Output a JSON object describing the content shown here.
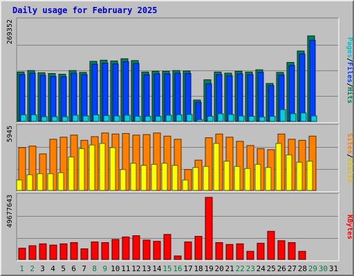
{
  "title": "Daily usage for February 2025",
  "legend_top": [
    {
      "label": "Pages",
      "color": "#00c0d0"
    },
    {
      "label": "Files",
      "color": "#0040ff"
    },
    {
      "label": "Hits",
      "color": "#008060"
    }
  ],
  "legend_mid": [
    {
      "label": "Sites",
      "color": "#ff8000"
    },
    {
      "label": "Visits",
      "color": "#e0c000"
    }
  ],
  "legend_bot": [
    {
      "label": "KBytes",
      "color": "#ff0000"
    }
  ],
  "separator": "/",
  "chart_data": [
    {
      "type": "bar",
      "panel": "hits-files-pages",
      "categories": [
        "1",
        "2",
        "3",
        "4",
        "5",
        "6",
        "7",
        "8",
        "9",
        "10",
        "11",
        "12",
        "13",
        "14",
        "15",
        "16",
        "17",
        "18",
        "19",
        "20",
        "21",
        "22",
        "23",
        "24",
        "25",
        "26",
        "27",
        "28",
        "29",
        "30",
        "31"
      ],
      "y_max_label": "269352",
      "ylim": [
        0,
        269352
      ],
      "series": [
        {
          "name": "Hits",
          "color": "#00805a",
          "values": [
            134000,
            138000,
            132000,
            130000,
            128000,
            138000,
            133000,
            163000,
            166000,
            164000,
            170000,
            165000,
            134000,
            136000,
            136000,
            138000,
            137000,
            58000,
            113000,
            134000,
            131000,
            136000,
            134000,
            140000,
            103000,
            133000,
            160000,
            191000,
            232000,
            0,
            0
          ]
        },
        {
          "name": "Files",
          "color": "#0040ff",
          "values": [
            127000,
            131000,
            125000,
            122000,
            121000,
            131000,
            127000,
            155000,
            158000,
            156000,
            162000,
            157000,
            127000,
            129000,
            129000,
            131000,
            130000,
            52000,
            102000,
            127000,
            124000,
            129000,
            127000,
            133000,
            97000,
            126000,
            152000,
            183000,
            220000,
            0,
            0
          ]
        },
        {
          "name": "Pages",
          "color": "#00d0e0",
          "values": [
            18000,
            18000,
            13000,
            13000,
            13000,
            17000,
            15000,
            18000,
            16000,
            15000,
            17000,
            14000,
            14000,
            14000,
            17000,
            18000,
            19000,
            5000,
            14000,
            21000,
            19000,
            15000,
            14000,
            12000,
            14000,
            32000,
            21000,
            23000,
            15000,
            0,
            0
          ]
        }
      ]
    },
    {
      "type": "bar",
      "panel": "sites-visits",
      "categories": [
        "1",
        "2",
        "3",
        "4",
        "5",
        "6",
        "7",
        "8",
        "9",
        "10",
        "11",
        "12",
        "13",
        "14",
        "15",
        "16",
        "17",
        "18",
        "19",
        "20",
        "21",
        "22",
        "23",
        "24",
        "25",
        "26",
        "27",
        "28",
        "29",
        "30",
        "31"
      ],
      "y_max_label": "5945",
      "ylim": [
        0,
        5945
      ],
      "series": [
        {
          "name": "Sites",
          "color": "#ff8000",
          "values": [
            4100,
            4250,
            3500,
            4900,
            5100,
            5300,
            4800,
            5150,
            5500,
            5400,
            5450,
            5300,
            5350,
            5500,
            5200,
            4900,
            2000,
            2900,
            5050,
            5400,
            5100,
            4700,
            4300,
            4000,
            3900,
            5400,
            4900,
            4800,
            5200,
            0,
            0
          ]
        },
        {
          "name": "Visits",
          "color": "#ffff00",
          "values": [
            1000,
            1500,
            1600,
            1600,
            1700,
            3200,
            4000,
            4350,
            4500,
            4100,
            2000,
            2600,
            2400,
            2500,
            2600,
            2400,
            1000,
            2200,
            2300,
            4500,
            2800,
            2300,
            2100,
            2500,
            2200,
            4500,
            3400,
            2700,
            2800,
            0,
            0
          ]
        }
      ]
    },
    {
      "type": "bar",
      "panel": "kbytes",
      "categories": [
        "1",
        "2",
        "3",
        "4",
        "5",
        "6",
        "7",
        "8",
        "9",
        "10",
        "11",
        "12",
        "13",
        "14",
        "15",
        "16",
        "17",
        "18",
        "19",
        "20",
        "21",
        "22",
        "23",
        "24",
        "25",
        "26",
        "27",
        "28",
        "29",
        "30",
        "31"
      ],
      "y_max_label": "49677643",
      "ylim": [
        0,
        49677643
      ],
      "series": [
        {
          "name": "KBytes",
          "color": "#ff0000",
          "values": [
            9000000,
            11000000,
            12500000,
            11500000,
            12500000,
            13500000,
            8500000,
            14000000,
            13500000,
            16000000,
            18000000,
            19000000,
            15500000,
            14500000,
            20000000,
            2800000,
            14000000,
            18500000,
            49677643,
            13500000,
            12000000,
            12500000,
            6500000,
            13000000,
            22500000,
            15000000,
            13500000,
            6500000,
            0,
            0,
            0
          ]
        }
      ]
    }
  ],
  "x_labels": [
    {
      "text": "1",
      "color": "#008040"
    },
    {
      "text": "2",
      "color": "#008040"
    },
    {
      "text": "3",
      "color": "#000000"
    },
    {
      "text": "4",
      "color": "#000000"
    },
    {
      "text": "5",
      "color": "#000000"
    },
    {
      "text": "6",
      "color": "#000000"
    },
    {
      "text": "7",
      "color": "#000000"
    },
    {
      "text": "8",
      "color": "#008040"
    },
    {
      "text": "9",
      "color": "#008040"
    },
    {
      "text": "10",
      "color": "#000000"
    },
    {
      "text": "11",
      "color": "#000000"
    },
    {
      "text": "12",
      "color": "#000000"
    },
    {
      "text": "13",
      "color": "#000000"
    },
    {
      "text": "14",
      "color": "#000000"
    },
    {
      "text": "15",
      "color": "#008040"
    },
    {
      "text": "16",
      "color": "#008040"
    },
    {
      "text": "17",
      "color": "#000000"
    },
    {
      "text": "18",
      "color": "#000000"
    },
    {
      "text": "19",
      "color": "#000000"
    },
    {
      "text": "20",
      "color": "#000000"
    },
    {
      "text": "21",
      "color": "#000000"
    },
    {
      "text": "22",
      "color": "#008040"
    },
    {
      "text": "23",
      "color": "#008040"
    },
    {
      "text": "24",
      "color": "#000000"
    },
    {
      "text": "25",
      "color": "#000000"
    },
    {
      "text": "26",
      "color": "#000000"
    },
    {
      "text": "27",
      "color": "#000000"
    },
    {
      "text": "28",
      "color": "#000000"
    },
    {
      "text": "29",
      "color": "#008040"
    },
    {
      "text": "30",
      "color": "#008040"
    },
    {
      "text": "31",
      "color": "#000000"
    }
  ]
}
